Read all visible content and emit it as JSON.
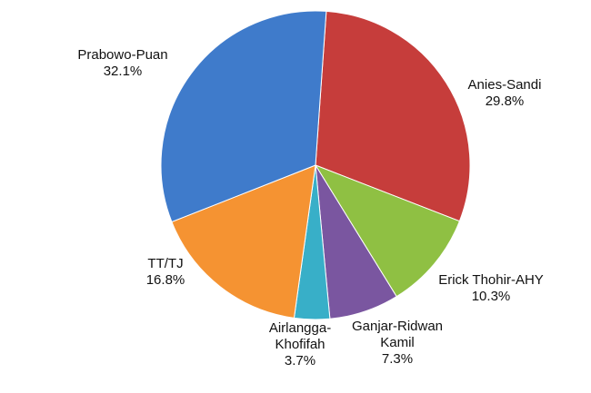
{
  "chart_data": {
    "type": "pie",
    "categories": [
      "Anies-Sandi",
      "Erick Thohir-AHY",
      "Ganjar-Ridwan Kamil",
      "Airlangga-Khofifah",
      "TT/TJ",
      "Prabowo-Puan"
    ],
    "values": [
      29.8,
      10.3,
      7.3,
      3.7,
      16.8,
      32.1
    ],
    "value_labels": [
      "29.8%",
      "10.3%",
      "7.3%",
      "3.7%",
      "16.8%",
      "32.1%"
    ],
    "colors": [
      "#c63d3b",
      "#8fc043",
      "#7a56a0",
      "#38afc8",
      "#f59332",
      "#3f7bcb"
    ]
  }
}
